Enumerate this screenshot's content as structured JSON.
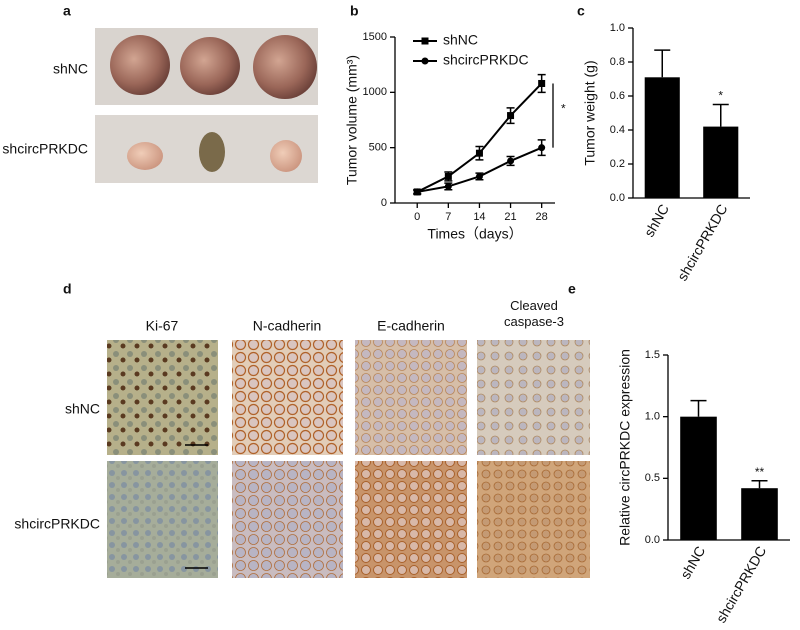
{
  "panel_labels": [
    "a",
    "b",
    "c",
    "d",
    "e"
  ],
  "tumor_photos": {
    "rows": [
      "shNC",
      "shcircPRKDC"
    ]
  },
  "ihc": {
    "columns": [
      "Ki-67",
      "N-cadherin",
      "E-cadherin",
      "Cleaved caspase-3"
    ],
    "rows": [
      "shNC",
      "shcircPRKDC"
    ]
  },
  "chart_data": [
    {
      "type": "line",
      "xlabel": "Times（days）",
      "ylabel": "Tumor volume (mm³)",
      "x": [
        0,
        7,
        14,
        21,
        28
      ],
      "xlim": [
        -5,
        31
      ],
      "xticks": [
        0,
        7,
        14,
        21,
        28
      ],
      "ylim": [
        0,
        1500
      ],
      "yticks": [
        0,
        500,
        1000,
        1500
      ],
      "series": [
        {
          "name": "shNC",
          "color": "#000000",
          "marker": "square",
          "values": [
            100,
            240,
            450,
            790,
            1080
          ],
          "errors": [
            20,
            40,
            60,
            70,
            80
          ]
        },
        {
          "name": "shcircPRKDC",
          "color": "#000000",
          "marker": "circle",
          "values": [
            100,
            150,
            240,
            380,
            500
          ],
          "errors": [
            15,
            30,
            30,
            40,
            70
          ]
        }
      ],
      "legend": "upper left",
      "annotation": "*"
    },
    {
      "type": "bar",
      "ylabel": "Tumor weight (g)",
      "categories": [
        "shNC",
        "shcircPRKDC"
      ],
      "values": [
        0.71,
        0.42
      ],
      "errors": [
        0.16,
        0.13
      ],
      "color": "#000000",
      "ylim": [
        0,
        1.0
      ],
      "yticks": [
        {
          "value": 0,
          "label": "0.0"
        },
        0.2,
        0.4,
        0.6,
        0.8,
        {
          "value": 1.0,
          "label": "1.0"
        }
      ],
      "annotation": "*"
    },
    {
      "type": "bar",
      "ylabel": "Relative circPRKDC  expression",
      "categories": [
        "shNC",
        "shcircPRKDC"
      ],
      "values": [
        1.0,
        0.42
      ],
      "errors": [
        0.13,
        0.06
      ],
      "color": "#000000",
      "ylim": [
        0,
        1.5
      ],
      "yticks": [
        {
          "value": 0,
          "label": "0.0"
        },
        0.5,
        {
          "value": 1.0,
          "label": "1.0"
        },
        1.5
      ],
      "annotation": "**"
    }
  ]
}
